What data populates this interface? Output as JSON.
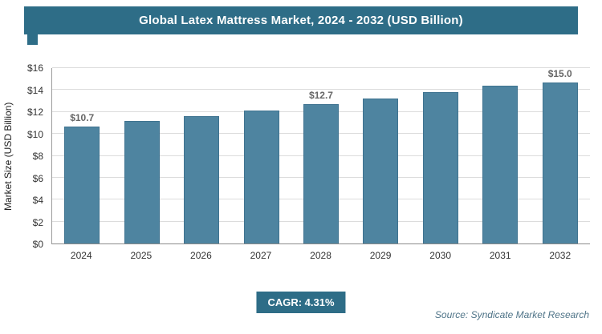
{
  "header": {
    "title": "Global Latex Mattress Market, 2024 - 2032 (USD Billion)"
  },
  "chart_data": {
    "type": "bar",
    "categories": [
      "2024",
      "2025",
      "2026",
      "2027",
      "2028",
      "2029",
      "2030",
      "2031",
      "2032"
    ],
    "values": [
      10.7,
      11.2,
      11.6,
      12.1,
      12.7,
      13.2,
      13.8,
      14.4,
      15.0
    ],
    "point_labels": [
      "$10.7",
      null,
      null,
      null,
      "$12.7",
      null,
      null,
      null,
      "$15.0"
    ],
    "title": "Global Latex Mattress Market, 2024 - 2032 (USD Billion)",
    "xlabel": "",
    "ylabel": "Market Size (USD Billion)",
    "ylim": [
      0,
      16
    ],
    "ytick_step": 2,
    "ytick_labels": [
      "$0",
      "$2",
      "$4",
      "$6",
      "$8",
      "$10",
      "$12",
      "$14",
      "$16"
    ],
    "grid": true,
    "legend_position": "none",
    "bar_color": "#4e84a0",
    "accent_color": "#2e6d87"
  },
  "footer": {
    "cagr_label": "CAGR: 4.31%",
    "source": "Source: Syndicate Market Research"
  }
}
